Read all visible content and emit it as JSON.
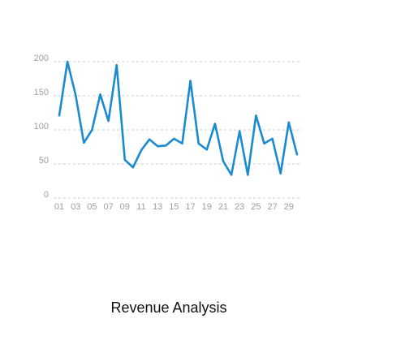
{
  "chart_data": {
    "type": "line",
    "title": "Revenue Analysis",
    "xlabel": "",
    "ylabel": "",
    "x": [
      "01",
      "02",
      "03",
      "04",
      "05",
      "06",
      "07",
      "08",
      "09",
      "10",
      "11",
      "12",
      "13",
      "14",
      "15",
      "16",
      "17",
      "18",
      "19",
      "20",
      "21",
      "22",
      "23",
      "24",
      "25",
      "26",
      "27",
      "28",
      "29",
      "30"
    ],
    "x_tick_labels": [
      "01",
      "03",
      "05",
      "07",
      "09",
      "11",
      "13",
      "15",
      "17",
      "19",
      "21",
      "23",
      "25",
      "27",
      "29"
    ],
    "series": [
      {
        "values": [
          121,
          200,
          151,
          81,
          100,
          152,
          113,
          195,
          56,
          45,
          70,
          86,
          76,
          77,
          87,
          80,
          172,
          80,
          71,
          109,
          54,
          34,
          98,
          34,
          121,
          80,
          87,
          36,
          111,
          64
        ]
      }
    ],
    "ylim": [
      0,
      200
    ],
    "y_ticks": [
      0,
      50,
      100,
      150,
      200
    ],
    "grid": true,
    "color": "#1b8bd1"
  }
}
